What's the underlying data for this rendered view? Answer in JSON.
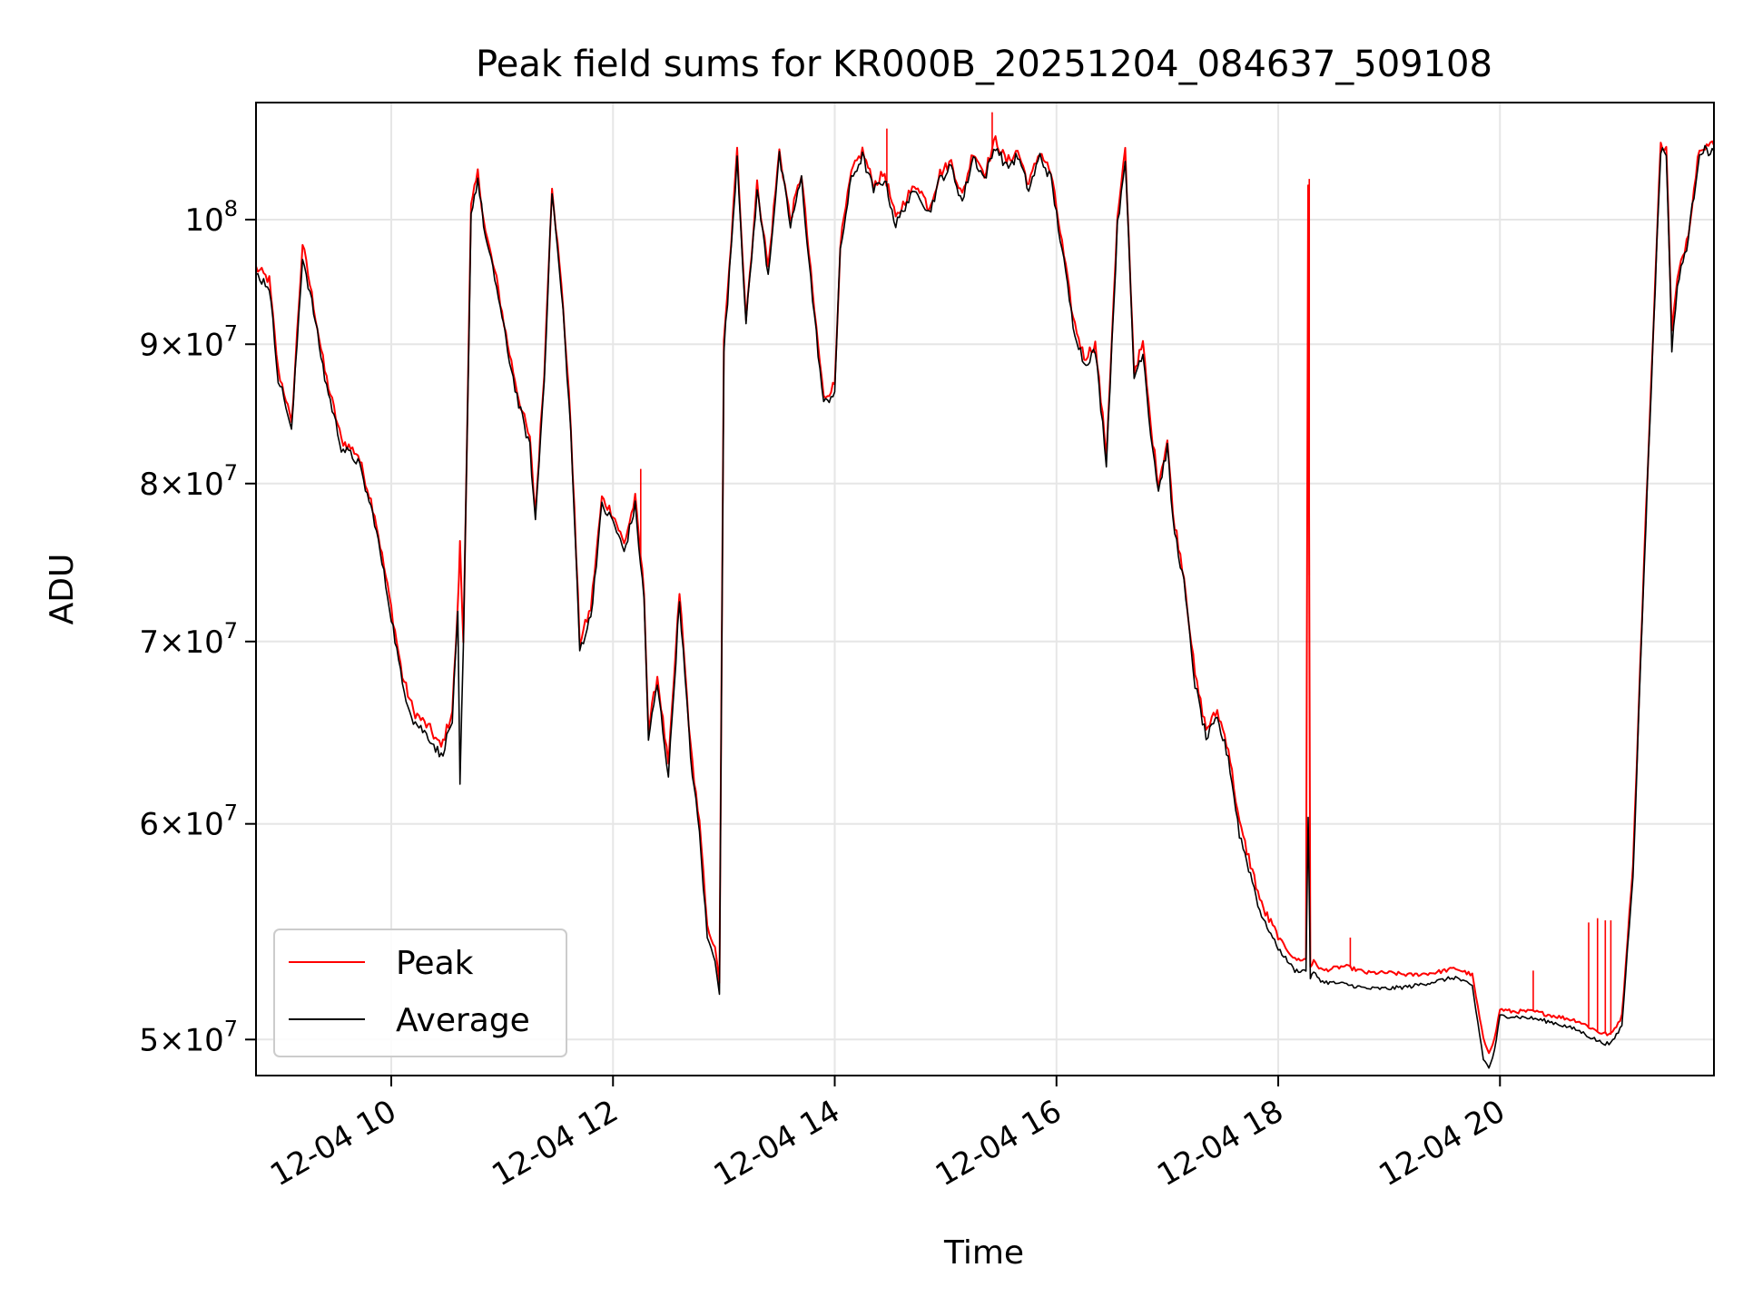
{
  "chart_data": {
    "type": "line",
    "title": "Peak field sums for KR000B_20251204_084637_509108",
    "xlabel": "Time",
    "ylabel": "ADU",
    "yscale": "log",
    "xlim": [
      8.78,
      21.93
    ],
    "ylim": [
      48500000,
      110400000
    ],
    "grid": true,
    "legend_position": "lower-left",
    "x_ticks": [
      {
        "value": 10,
        "label": "12-04 10"
      },
      {
        "value": 12,
        "label": "12-04 12"
      },
      {
        "value": 14,
        "label": "12-04 14"
      },
      {
        "value": 16,
        "label": "12-04 16"
      },
      {
        "value": 18,
        "label": "12-04 18"
      },
      {
        "value": 20,
        "label": "12-04 20"
      }
    ],
    "y_ticks": [
      {
        "value": 50000000,
        "mantissa": "5",
        "base": "10",
        "exp": "7"
      },
      {
        "value": 60000000,
        "mantissa": "6",
        "base": "10",
        "exp": "7"
      },
      {
        "value": 70000000,
        "mantissa": "7",
        "base": "10",
        "exp": "7"
      },
      {
        "value": 80000000,
        "mantissa": "8",
        "base": "10",
        "exp": "7"
      },
      {
        "value": 90000000,
        "mantissa": "9",
        "base": "10",
        "exp": "7"
      },
      {
        "value": 100000000,
        "mantissa": "",
        "base": "10",
        "exp": "8"
      }
    ],
    "x_unit": "hours on 12-04",
    "series": [
      {
        "name": "Peak",
        "color": "#ff0000",
        "x": [
          8.78,
          8.9,
          8.98,
          9.05,
          9.1,
          9.2,
          9.3,
          9.4,
          9.55,
          9.7,
          9.85,
          10.0,
          10.1,
          10.2,
          10.35,
          10.45,
          10.55,
          10.6,
          10.62,
          10.65,
          10.72,
          10.78,
          10.85,
          10.95,
          11.05,
          11.15,
          11.25,
          11.3,
          11.38,
          11.45,
          11.55,
          11.62,
          11.7,
          11.8,
          11.9,
          12.0,
          12.1,
          12.2,
          12.28,
          12.32,
          12.4,
          12.5,
          12.6,
          12.7,
          12.78,
          12.85,
          12.92,
          12.96,
          13.0,
          13.05,
          13.12,
          13.2,
          13.3,
          13.4,
          13.5,
          13.6,
          13.7,
          13.8,
          13.9,
          14.0,
          14.05,
          14.15,
          14.25,
          14.35,
          14.45,
          14.55,
          14.65,
          14.75,
          14.85,
          14.95,
          15.05,
          15.15,
          15.25,
          15.35,
          15.45,
          15.55,
          15.65,
          15.75,
          15.85,
          15.95,
          16.05,
          16.15,
          16.25,
          16.35,
          16.45,
          16.55,
          16.62,
          16.7,
          16.78,
          16.85,
          16.92,
          17.0,
          17.05,
          17.15,
          17.25,
          17.35,
          17.45,
          17.55,
          17.65,
          17.75,
          17.85,
          18.0,
          18.15,
          18.25,
          18.27,
          18.29,
          18.32,
          18.4,
          18.6,
          18.8,
          19.0,
          19.2,
          19.4,
          19.6,
          19.75,
          19.85,
          19.9,
          19.95,
          20.0,
          20.1,
          20.3,
          20.5,
          20.7,
          20.82,
          20.9,
          21.0,
          21.1,
          21.2,
          21.3,
          21.4,
          21.45,
          21.5,
          21.55,
          21.6,
          21.7,
          21.8,
          21.93
        ],
        "y": [
          96000000,
          95000000,
          88000000,
          86000000,
          84000000,
          98000000,
          93000000,
          88000000,
          83000000,
          82000000,
          78000000,
          72000000,
          68000000,
          66000000,
          65000000,
          64000000,
          66000000,
          72000000,
          76000000,
          70000000,
          101000000,
          104000000,
          99000000,
          95000000,
          90000000,
          86000000,
          83000000,
          78000000,
          88000000,
          103000000,
          93000000,
          84000000,
          70000000,
          72000000,
          79000000,
          78000000,
          76000000,
          79000000,
          73000000,
          65000000,
          68000000,
          63000000,
          73000000,
          64000000,
          60000000,
          55000000,
          54000000,
          52500000,
          90000000,
          96000000,
          106000000,
          92000000,
          103000000,
          96000000,
          106000000,
          100000000,
          104000000,
          94000000,
          86000000,
          87000000,
          98000000,
          104000000,
          106000000,
          103000000,
          104000000,
          100000000,
          102000000,
          103000000,
          101000000,
          104000000,
          105000000,
          102000000,
          106000000,
          104000000,
          107000000,
          105000000,
          106000000,
          103000000,
          106000000,
          104000000,
          98000000,
          92000000,
          89000000,
          90000000,
          82000000,
          100000000,
          106000000,
          88000000,
          90000000,
          84000000,
          80000000,
          83000000,
          78000000,
          74000000,
          68000000,
          65000000,
          66000000,
          64000000,
          60000000,
          58000000,
          56000000,
          54500000,
          53500000,
          53500000,
          103000000,
          53200000,
          53400000,
          53000000,
          53200000,
          52900000,
          52900000,
          52800000,
          52900000,
          53100000,
          52800000,
          50000000,
          49500000,
          50000000,
          51300000,
          51200000,
          51200000,
          51000000,
          50800000,
          50500000,
          50300000,
          50200000,
          51000000,
          58000000,
          75000000,
          95000000,
          106500000,
          106500000,
          91000000,
          95000000,
          99000000,
          106500000,
          106500000
        ],
        "spikes": [
          {
            "x": 18.28,
            "y": 103500000
          },
          {
            "x": 18.65,
            "y": 54500000
          },
          {
            "x": 20.3,
            "y": 53000000
          },
          {
            "x": 20.8,
            "y": 55200000
          },
          {
            "x": 20.88,
            "y": 55400000
          },
          {
            "x": 20.95,
            "y": 55300000
          },
          {
            "x": 21.0,
            "y": 55300000
          },
          {
            "x": 12.25,
            "y": 81000000
          },
          {
            "x": 15.42,
            "y": 109500000
          },
          {
            "x": 14.47,
            "y": 108000000
          }
        ]
      },
      {
        "name": "Average",
        "color": "#000000",
        "x": [
          8.78,
          8.9,
          8.98,
          9.05,
          9.1,
          9.2,
          9.3,
          9.4,
          9.55,
          9.7,
          9.85,
          10.0,
          10.1,
          10.2,
          10.35,
          10.45,
          10.55,
          10.6,
          10.62,
          10.65,
          10.72,
          10.78,
          10.85,
          10.95,
          11.05,
          11.15,
          11.25,
          11.3,
          11.38,
          11.45,
          11.55,
          11.62,
          11.7,
          11.8,
          11.9,
          12.0,
          12.1,
          12.2,
          12.28,
          12.32,
          12.4,
          12.5,
          12.6,
          12.7,
          12.78,
          12.85,
          12.92,
          12.96,
          13.0,
          13.05,
          13.12,
          13.2,
          13.3,
          13.4,
          13.5,
          13.6,
          13.7,
          13.8,
          13.9,
          14.0,
          14.05,
          14.15,
          14.25,
          14.35,
          14.45,
          14.55,
          14.65,
          14.75,
          14.85,
          14.95,
          15.05,
          15.15,
          15.25,
          15.35,
          15.45,
          15.55,
          15.65,
          15.75,
          15.85,
          15.95,
          16.05,
          16.15,
          16.25,
          16.35,
          16.45,
          16.55,
          16.62,
          16.7,
          16.78,
          16.85,
          16.92,
          17.0,
          17.05,
          17.15,
          17.25,
          17.35,
          17.45,
          17.55,
          17.65,
          17.75,
          17.85,
          18.0,
          18.15,
          18.25,
          18.27,
          18.29,
          18.32,
          18.4,
          18.6,
          18.8,
          19.0,
          19.2,
          19.4,
          19.6,
          19.75,
          19.85,
          19.9,
          19.95,
          20.0,
          20.1,
          20.3,
          20.5,
          20.7,
          20.82,
          20.9,
          21.0,
          21.1,
          21.2,
          21.3,
          21.4,
          21.45,
          21.5,
          21.55,
          21.6,
          21.7,
          21.8,
          21.93
        ],
        "y": [
          95500000,
          94500000,
          87500000,
          85500000,
          83500000,
          97000000,
          92500000,
          87500000,
          82500000,
          81500000,
          77500000,
          71500000,
          67500000,
          65500000,
          64500000,
          63500000,
          65500000,
          71500000,
          62000000,
          69500000,
          100500000,
          103500000,
          98500000,
          94500000,
          89500000,
          85500000,
          82500000,
          77500000,
          87500000,
          102500000,
          92500000,
          83500000,
          69500000,
          71500000,
          78500000,
          77500000,
          75500000,
          78500000,
          72500000,
          64500000,
          67500000,
          62500000,
          72500000,
          63500000,
          59500000,
          54500000,
          53500000,
          52000000,
          89500000,
          95500000,
          105500000,
          91500000,
          102500000,
          95500000,
          105500000,
          99500000,
          103500000,
          93500000,
          85500000,
          86500000,
          97500000,
          103500000,
          105500000,
          102500000,
          103500000,
          99500000,
          101500000,
          102500000,
          100500000,
          103500000,
          104500000,
          101500000,
          105500000,
          103500000,
          106500000,
          104500000,
          105500000,
          102500000,
          105500000,
          103500000,
          97500000,
          91500000,
          88500000,
          89500000,
          81500000,
          99500000,
          105500000,
          87500000,
          89500000,
          83500000,
          79500000,
          82500000,
          77500000,
          73500000,
          67500000,
          64500000,
          65500000,
          63500000,
          59500000,
          57500000,
          55500000,
          54000000,
          53000000,
          53000000,
          60500000,
          52700000,
          52900000,
          52500000,
          52400000,
          52200000,
          52200000,
          52300000,
          52500000,
          52700000,
          52300000,
          49200000,
          48800000,
          49500000,
          51000000,
          51000000,
          50900000,
          50700000,
          50400000,
          50100000,
          49900000,
          49800000,
          50600000,
          57500000,
          74500000,
          94500000,
          106000000,
          106000000,
          89800000,
          94500000,
          98500000,
          106000000,
          106000000
        ]
      }
    ]
  }
}
